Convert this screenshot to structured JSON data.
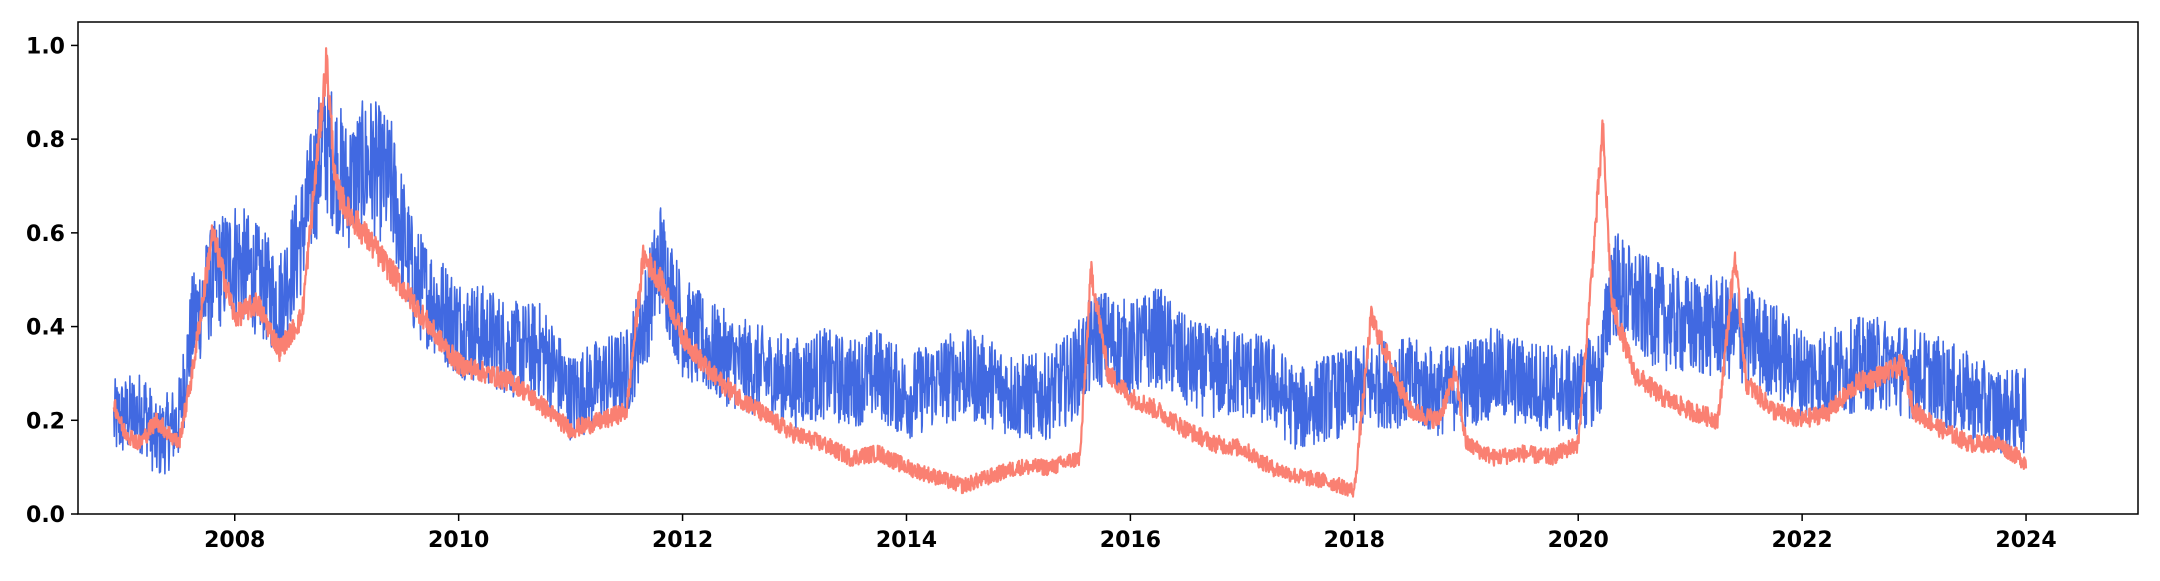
{
  "chart_data": {
    "type": "line",
    "title": "",
    "xlabel": "",
    "ylabel": "",
    "xlim": [
      2006.6,
      2025.0
    ],
    "ylim": [
      0.0,
      1.05
    ],
    "xticks": [
      "2008",
      "2010",
      "2012",
      "2014",
      "2016",
      "2018",
      "2020",
      "2022",
      "2024"
    ],
    "yticks": [
      "0.0",
      "0.2",
      "0.4",
      "0.6",
      "0.8",
      "1.0"
    ],
    "grid": false,
    "legend": "none",
    "series": [
      {
        "color": "#4169e1",
        "x": [
          2006.92,
          2007.2,
          2007.3,
          2007.5,
          2007.62,
          2007.8,
          2008.0,
          2008.2,
          2008.4,
          2008.6,
          2008.8,
          2008.9,
          2009.0,
          2009.2,
          2009.4,
          2009.6,
          2009.8,
          2010.0,
          2010.25,
          2010.5,
          2010.75,
          2011.0,
          2011.25,
          2011.5,
          2011.7,
          2011.8,
          2012.0,
          2012.25,
          2012.5,
          2012.75,
          2013.0,
          2013.25,
          2013.5,
          2013.75,
          2014.0,
          2014.25,
          2014.5,
          2014.75,
          2015.0,
          2015.25,
          2015.5,
          2015.7,
          2016.0,
          2016.25,
          2016.5,
          2016.75,
          2017.0,
          2017.25,
          2017.5,
          2017.75,
          2018.0,
          2018.2,
          2018.5,
          2018.75,
          2019.0,
          2019.25,
          2019.5,
          2019.75,
          2020.0,
          2020.2,
          2020.3,
          2020.5,
          2020.75,
          2021.0,
          2021.25,
          2021.5,
          2021.75,
          2022.0,
          2022.25,
          2022.5,
          2022.75,
          2023.0,
          2023.25,
          2023.5,
          2023.75,
          2024.0
        ],
        "y": [
          0.2,
          0.22,
          0.15,
          0.2,
          0.4,
          0.5,
          0.55,
          0.5,
          0.45,
          0.6,
          0.8,
          0.75,
          0.7,
          0.75,
          0.7,
          0.5,
          0.45,
          0.4,
          0.38,
          0.35,
          0.35,
          0.25,
          0.28,
          0.3,
          0.45,
          0.55,
          0.4,
          0.35,
          0.32,
          0.3,
          0.28,
          0.3,
          0.28,
          0.3,
          0.25,
          0.28,
          0.3,
          0.28,
          0.25,
          0.25,
          0.3,
          0.38,
          0.35,
          0.38,
          0.32,
          0.3,
          0.3,
          0.28,
          0.22,
          0.25,
          0.26,
          0.28,
          0.28,
          0.26,
          0.28,
          0.3,
          0.28,
          0.27,
          0.26,
          0.3,
          0.5,
          0.45,
          0.42,
          0.4,
          0.4,
          0.38,
          0.35,
          0.3,
          0.3,
          0.32,
          0.32,
          0.3,
          0.28,
          0.25,
          0.22,
          0.22
        ]
      },
      {
        "color": "#fa8072",
        "x": [
          2006.92,
          2007.0,
          2007.15,
          2007.3,
          2007.5,
          2007.62,
          2007.8,
          2008.0,
          2008.2,
          2008.4,
          2008.6,
          2008.82,
          2008.9,
          2009.0,
          2009.3,
          2009.6,
          2009.8,
          2010.0,
          2010.5,
          2010.8,
          2011.0,
          2011.3,
          2011.5,
          2011.65,
          2011.8,
          2012.0,
          2012.25,
          2012.5,
          2012.8,
          2013.0,
          2013.25,
          2013.5,
          2013.75,
          2014.0,
          2014.25,
          2014.5,
          2014.75,
          2015.0,
          2015.3,
          2015.55,
          2015.65,
          2015.8,
          2016.0,
          2016.25,
          2016.5,
          2016.75,
          2017.0,
          2017.25,
          2017.5,
          2017.75,
          2018.0,
          2018.15,
          2018.5,
          2018.75,
          2018.9,
          2019.0,
          2019.25,
          2019.5,
          2019.75,
          2020.0,
          2020.15,
          2020.22,
          2020.3,
          2020.5,
          2020.75,
          2021.0,
          2021.25,
          2021.4,
          2021.5,
          2021.75,
          2022.0,
          2022.25,
          2022.5,
          2022.75,
          2022.9,
          2023.0,
          2023.25,
          2023.5,
          2023.75,
          2024.0
        ],
        "y": [
          0.24,
          0.18,
          0.15,
          0.2,
          0.15,
          0.3,
          0.6,
          0.42,
          0.45,
          0.35,
          0.42,
          0.97,
          0.7,
          0.65,
          0.55,
          0.45,
          0.38,
          0.32,
          0.28,
          0.22,
          0.18,
          0.2,
          0.22,
          0.55,
          0.5,
          0.38,
          0.3,
          0.25,
          0.2,
          0.17,
          0.15,
          0.12,
          0.13,
          0.1,
          0.08,
          0.06,
          0.08,
          0.1,
          0.1,
          0.12,
          0.52,
          0.3,
          0.25,
          0.22,
          0.18,
          0.15,
          0.14,
          0.1,
          0.08,
          0.07,
          0.05,
          0.42,
          0.22,
          0.2,
          0.3,
          0.15,
          0.12,
          0.13,
          0.12,
          0.15,
          0.6,
          0.82,
          0.45,
          0.3,
          0.25,
          0.22,
          0.2,
          0.55,
          0.28,
          0.22,
          0.2,
          0.22,
          0.28,
          0.3,
          0.32,
          0.22,
          0.18,
          0.15,
          0.15,
          0.11
        ]
      }
    ]
  }
}
